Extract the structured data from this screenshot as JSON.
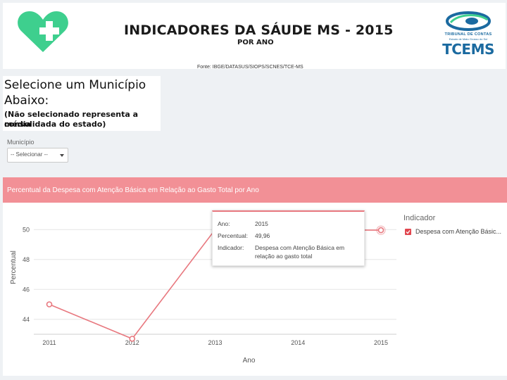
{
  "header": {
    "title": "INDICADORES DA SÁUDE MS - 2015",
    "subtitle": "POR ANO",
    "source": "Fonte: IBGE/DATASUS/SIOPS/SCNES/TCE-MS",
    "tce_caption": "TRIBUNAL DE CONTAS",
    "tce_caption_small": "Estado de Mato Grosso do Sul",
    "tce_word": "TCEMS",
    "heart_icon": "heart-plus-icon",
    "brand_color": "#3ecf8e"
  },
  "selector": {
    "line1": "Selecione um Município",
    "line2": "Abaixo:",
    "line3": "(Não selecionado representa a média",
    "line4": "consolidada do estado)",
    "field_label": "Município",
    "field_value": "-- Selecionar --"
  },
  "chart": {
    "title": "Percentual da Despesa com Atenção Básica em Relação ao Gasto Total por Ano",
    "header_color": "#f29096",
    "line_color": "#e8787f"
  },
  "tooltip": {
    "rows": [
      {
        "label": "Ano:",
        "value": "2015"
      },
      {
        "label": "Percentual:",
        "value": "49,96"
      },
      {
        "label": "Indicador:",
        "value": "Despesa com Atenção Básica em"
      },
      {
        "label": "",
        "value": "relação ao gasto total"
      }
    ]
  },
  "legend": {
    "title": "Indicador",
    "item": "Despesa com Atenção Básic..."
  },
  "chart_data": {
    "type": "line",
    "title": "Percentual da Despesa com Atenção Básica em Relação ao Gasto Total por Ano",
    "xlabel": "Ano",
    "ylabel": "Percentual",
    "x": [
      2011,
      2012,
      2013,
      2014,
      2015
    ],
    "x_ticks": [
      "2011",
      "2012",
      "2013",
      "2014",
      "2015"
    ],
    "y_ticks": [
      "44",
      "46",
      "48",
      "50"
    ],
    "ylim": [
      43,
      51
    ],
    "grid": true,
    "legend_position": "right",
    "series": [
      {
        "name": "Despesa com Atenção Básica em relação ao gasto total",
        "points": [
          [
            2011,
            45.0
          ],
          [
            2012,
            42.7
          ],
          [
            2013,
            50.0
          ],
          [
            2015,
            49.96
          ]
        ]
      }
    ]
  }
}
